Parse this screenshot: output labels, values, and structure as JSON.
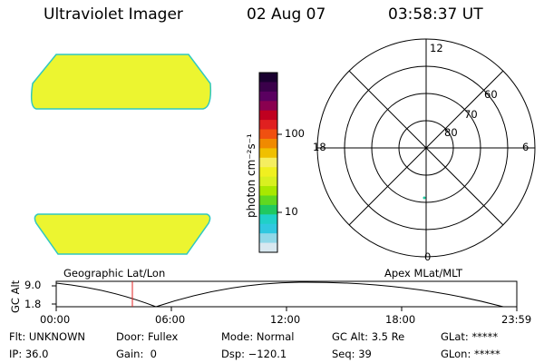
{
  "header": {
    "title": "Ultraviolet Imager",
    "date": "02 Aug 07",
    "time": "03:58:37 UT"
  },
  "colorbar": {
    "label": "photon cm⁻²s⁻¹",
    "ticks": [
      "100",
      "10"
    ],
    "colors": [
      "#1a0030",
      "#3a004a",
      "#5a0060",
      "#8a0050",
      "#c00020",
      "#e02020",
      "#f05010",
      "#f08a00",
      "#f0c000",
      "#f5ee60",
      "#f0f020",
      "#d8f020",
      "#a8e800",
      "#60d820",
      "#20c860",
      "#20d0c8",
      "#30c8e0",
      "#90d8e8",
      "#d8e8f0"
    ]
  },
  "polar": {
    "mlt_labels": [
      "12",
      "18",
      "6",
      "0"
    ],
    "mlat_labels": [
      "60",
      "70",
      "80"
    ]
  },
  "timeline": {
    "ylabel": "GC Alt",
    "y_ticks": [
      "9.0",
      "1.8"
    ],
    "left_title": "Geographic Lat/Lon",
    "right_title": "Apex MLat/MLT",
    "x_ticks": [
      "00:00",
      "06:00",
      "12:00",
      "18:00",
      "23:59"
    ]
  },
  "info": {
    "flt": "Flt: UNKNOWN",
    "door": "Door: Fullex",
    "mode": "Mode: Normal",
    "gcalt": "GC Alt: 3.5 Re",
    "glat": "GLat: *****",
    "ip": "IP: 36.0",
    "gain": "Gain:  0",
    "dsp": "Dsp: −120.1",
    "seq": "Seq: 39",
    "glon": "GLon: *****"
  },
  "colors": {
    "image_fill": "#ecf530",
    "image_edge": "#30c8c0",
    "marker": "#e02020",
    "dot": "#20c8a0"
  }
}
